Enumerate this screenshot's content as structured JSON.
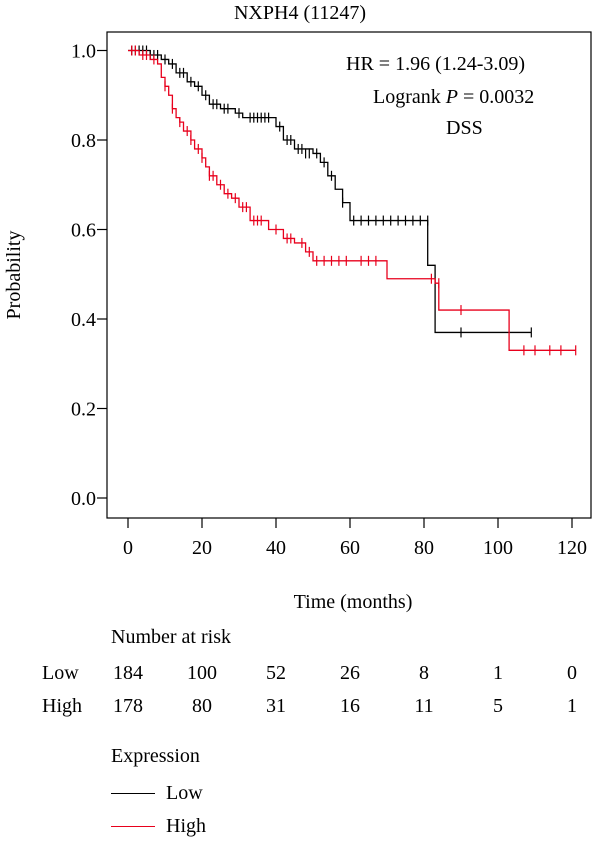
{
  "chart_data": {
    "type": "line",
    "title": "NXPH4 (11247)",
    "xlabel": "Time (months)",
    "ylabel": "Probability",
    "xlim": [
      0,
      120
    ],
    "ylim": [
      0,
      1
    ],
    "xticks": [
      0,
      20,
      40,
      60,
      80,
      100,
      120
    ],
    "yticks": [
      0.0,
      0.2,
      0.4,
      0.6,
      0.8,
      1.0
    ],
    "ytick_labels": [
      "0.0",
      "0.2",
      "0.4",
      "0.6",
      "0.8",
      "1.0"
    ],
    "grid": false,
    "annotations": {
      "hr": "HR = 1.96 (1.24-3.09)",
      "logrank_prefix": "Logrank ",
      "logrank_p": "P",
      "logrank_value": " = 0.0032",
      "endpoint": "DSS"
    },
    "series": [
      {
        "name": "Low",
        "color": "#000000",
        "steps": [
          [
            0,
            1.0
          ],
          [
            6,
            0.99
          ],
          [
            9,
            0.98
          ],
          [
            11,
            0.97
          ],
          [
            13,
            0.95
          ],
          [
            16,
            0.93
          ],
          [
            18,
            0.92
          ],
          [
            20,
            0.9
          ],
          [
            22,
            0.88
          ],
          [
            25,
            0.87
          ],
          [
            29,
            0.86
          ],
          [
            31,
            0.85
          ],
          [
            40,
            0.83
          ],
          [
            42,
            0.8
          ],
          [
            45,
            0.78
          ],
          [
            50,
            0.77
          ],
          [
            52,
            0.75
          ],
          [
            54,
            0.72
          ],
          [
            56,
            0.69
          ],
          [
            58,
            0.66
          ],
          [
            60,
            0.62
          ],
          [
            81,
            0.52
          ],
          [
            83,
            0.37
          ],
          [
            109,
            0.37
          ]
        ],
        "censors": [
          [
            1,
            1.0
          ],
          [
            2,
            1.0
          ],
          [
            3,
            1.0
          ],
          [
            4,
            1.0
          ],
          [
            5,
            1.0
          ],
          [
            6,
            0.99
          ],
          [
            7,
            0.99
          ],
          [
            8,
            0.99
          ],
          [
            10,
            0.98
          ],
          [
            12,
            0.97
          ],
          [
            14,
            0.95
          ],
          [
            15,
            0.95
          ],
          [
            17,
            0.93
          ],
          [
            19,
            0.92
          ],
          [
            21,
            0.9
          ],
          [
            23,
            0.88
          ],
          [
            24,
            0.88
          ],
          [
            26,
            0.87
          ],
          [
            27,
            0.87
          ],
          [
            30,
            0.86
          ],
          [
            33,
            0.85
          ],
          [
            34,
            0.85
          ],
          [
            35,
            0.85
          ],
          [
            36,
            0.85
          ],
          [
            37,
            0.85
          ],
          [
            38,
            0.85
          ],
          [
            41,
            0.83
          ],
          [
            43,
            0.8
          ],
          [
            44,
            0.8
          ],
          [
            46,
            0.78
          ],
          [
            47,
            0.78
          ],
          [
            48,
            0.77
          ],
          [
            49,
            0.77
          ],
          [
            51,
            0.77
          ],
          [
            53,
            0.75
          ],
          [
            55,
            0.72
          ],
          [
            58,
            0.66
          ],
          [
            61,
            0.62
          ],
          [
            63,
            0.62
          ],
          [
            65,
            0.62
          ],
          [
            67,
            0.62
          ],
          [
            69,
            0.62
          ],
          [
            71,
            0.62
          ],
          [
            73,
            0.62
          ],
          [
            75,
            0.62
          ],
          [
            77,
            0.62
          ],
          [
            79,
            0.62
          ],
          [
            81,
            0.62
          ],
          [
            90,
            0.37
          ],
          [
            109,
            0.37
          ]
        ]
      },
      {
        "name": "High",
        "color": "#e8001c",
        "steps": [
          [
            0,
            1.0
          ],
          [
            3,
            0.99
          ],
          [
            6,
            0.98
          ],
          [
            8,
            0.97
          ],
          [
            9,
            0.94
          ],
          [
            10,
            0.92
          ],
          [
            11,
            0.9
          ],
          [
            12,
            0.87
          ],
          [
            13,
            0.85
          ],
          [
            14,
            0.84
          ],
          [
            15,
            0.82
          ],
          [
            17,
            0.8
          ],
          [
            18,
            0.78
          ],
          [
            20,
            0.76
          ],
          [
            21,
            0.74
          ],
          [
            22,
            0.72
          ],
          [
            24,
            0.7
          ],
          [
            26,
            0.68
          ],
          [
            28,
            0.67
          ],
          [
            30,
            0.65
          ],
          [
            33,
            0.62
          ],
          [
            38,
            0.6
          ],
          [
            42,
            0.58
          ],
          [
            45,
            0.57
          ],
          [
            48,
            0.55
          ],
          [
            50,
            0.53
          ],
          [
            70,
            0.49
          ],
          [
            83,
            0.48
          ],
          [
            84,
            0.42
          ],
          [
            103,
            0.33
          ],
          [
            121,
            0.33
          ]
        ],
        "censors": [
          [
            1,
            1.0
          ],
          [
            2,
            1.0
          ],
          [
            4,
            0.99
          ],
          [
            5,
            0.99
          ],
          [
            7,
            0.98
          ],
          [
            10,
            0.92
          ],
          [
            12,
            0.87
          ],
          [
            14,
            0.84
          ],
          [
            16,
            0.82
          ],
          [
            17,
            0.8
          ],
          [
            19,
            0.78
          ],
          [
            20,
            0.76
          ],
          [
            22,
            0.72
          ],
          [
            23,
            0.72
          ],
          [
            25,
            0.7
          ],
          [
            27,
            0.68
          ],
          [
            29,
            0.67
          ],
          [
            31,
            0.65
          ],
          [
            32,
            0.65
          ],
          [
            34,
            0.62
          ],
          [
            35,
            0.62
          ],
          [
            36,
            0.62
          ],
          [
            40,
            0.6
          ],
          [
            43,
            0.58
          ],
          [
            44,
            0.58
          ],
          [
            47,
            0.57
          ],
          [
            49,
            0.55
          ],
          [
            51,
            0.53
          ],
          [
            53,
            0.53
          ],
          [
            55,
            0.53
          ],
          [
            57,
            0.53
          ],
          [
            59,
            0.53
          ],
          [
            63,
            0.53
          ],
          [
            65,
            0.53
          ],
          [
            67,
            0.53
          ],
          [
            82,
            0.49
          ],
          [
            84,
            0.48
          ],
          [
            90,
            0.42
          ],
          [
            107,
            0.33
          ],
          [
            110,
            0.33
          ],
          [
            114,
            0.33
          ],
          [
            117,
            0.33
          ],
          [
            121,
            0.33
          ]
        ]
      }
    ],
    "risk_table": {
      "title": "Number at risk",
      "times": [
        "0",
        "20",
        "40",
        "60",
        "80",
        "100",
        "120"
      ],
      "rows": [
        {
          "label": "Low",
          "values": [
            "184",
            "100",
            "52",
            "26",
            "8",
            "1",
            "0"
          ]
        },
        {
          "label": "High",
          "values": [
            "178",
            "80",
            "31",
            "16",
            "11",
            "5",
            "1"
          ]
        }
      ]
    },
    "legend": {
      "title": "Expression",
      "placement": "bottom-left",
      "items": [
        {
          "label": "Low",
          "color": "#000000"
        },
        {
          "label": "High",
          "color": "#e8001c"
        }
      ]
    }
  }
}
